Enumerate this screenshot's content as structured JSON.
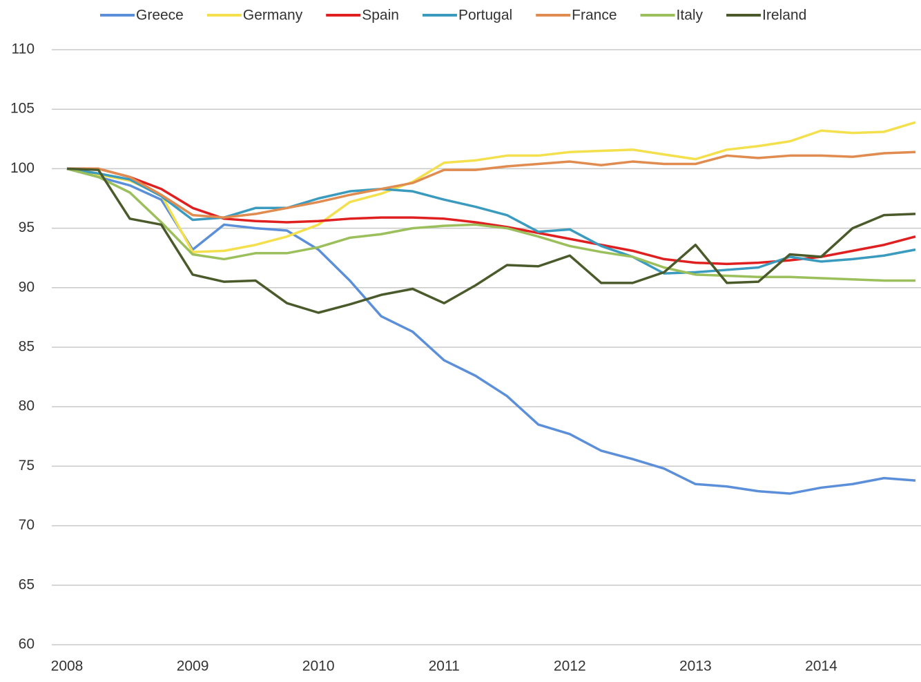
{
  "chart_data": {
    "type": "line",
    "x": [
      2008,
      2008.25,
      2008.5,
      2008.75,
      2009,
      2009.25,
      2009.5,
      2009.75,
      2010,
      2010.25,
      2010.5,
      2010.75,
      2011,
      2011.25,
      2011.5,
      2011.75,
      2012,
      2012.25,
      2012.5,
      2012.75,
      2013,
      2013.25,
      2013.5,
      2013.75,
      2014,
      2014.25,
      2014.5,
      2014.75
    ],
    "xlim": [
      2008,
      2014.75
    ],
    "xticks": [
      2008,
      2009,
      2010,
      2011,
      2012,
      2013,
      2014
    ],
    "ylim": [
      60,
      110
    ],
    "yticks": [
      60,
      65,
      70,
      75,
      80,
      85,
      90,
      95,
      100,
      105,
      110
    ],
    "grid": true,
    "series": [
      {
        "name": "Greece",
        "color": "#5b8fd9",
        "values": [
          100,
          99.3,
          98.6,
          97.4,
          93.2,
          95.3,
          95.0,
          94.8,
          93.2,
          90.6,
          87.6,
          86.3,
          83.9,
          82.6,
          80.9,
          78.5,
          77.7,
          76.3,
          75.6,
          74.8,
          73.5,
          73.3,
          72.9,
          72.7,
          73.2,
          73.5,
          74.0,
          73.8
        ]
      },
      {
        "name": "Germany",
        "color": "#f4e04d",
        "values": [
          100,
          99.5,
          99.0,
          97.8,
          93.0,
          93.1,
          93.6,
          94.3,
          95.3,
          97.2,
          97.9,
          98.9,
          100.5,
          100.7,
          101.1,
          101.1,
          101.4,
          101.5,
          101.6,
          101.2,
          100.8,
          101.6,
          101.9,
          102.3,
          103.2,
          103.0,
          103.1,
          103.9
        ]
      },
      {
        "name": "Spain",
        "color": "#e02020",
        "values": [
          100,
          100,
          99.3,
          98.3,
          96.7,
          95.8,
          95.6,
          95.5,
          95.6,
          95.8,
          95.9,
          95.9,
          95.8,
          95.5,
          95.1,
          94.6,
          94.1,
          93.6,
          93.1,
          92.4,
          92.1,
          92.0,
          92.1,
          92.3,
          92.6,
          93.1,
          93.6,
          94.3
        ]
      },
      {
        "name": "Portugal",
        "color": "#3a9bbf",
        "values": [
          100,
          99.6,
          99.1,
          97.7,
          95.7,
          95.9,
          96.7,
          96.7,
          97.5,
          98.1,
          98.3,
          98.1,
          97.4,
          96.8,
          96.1,
          94.7,
          94.9,
          93.5,
          92.6,
          91.2,
          91.3,
          91.5,
          91.7,
          92.6,
          92.2,
          92.4,
          92.7,
          93.2
        ]
      },
      {
        "name": "France",
        "color": "#e08b4f",
        "values": [
          100,
          100,
          99.3,
          97.8,
          96.1,
          95.9,
          96.2,
          96.7,
          97.2,
          97.8,
          98.3,
          98.8,
          99.9,
          99.9,
          100.2,
          100.4,
          100.6,
          100.3,
          100.6,
          100.4,
          100.4,
          101.1,
          100.9,
          101.1,
          101.1,
          101.0,
          101.3,
          101.4
        ]
      },
      {
        "name": "Italy",
        "color": "#9bbf5a",
        "values": [
          100,
          99.3,
          98.0,
          95.5,
          92.8,
          92.4,
          92.9,
          92.9,
          93.4,
          94.2,
          94.5,
          95.0,
          95.2,
          95.3,
          95.0,
          94.3,
          93.5,
          93.0,
          92.6,
          91.7,
          91.1,
          91.0,
          90.9,
          90.9,
          90.8,
          90.7,
          90.6,
          90.6
        ]
      },
      {
        "name": "Ireland",
        "color": "#4a5a2a",
        "values": [
          100,
          99.9,
          95.8,
          95.3,
          91.1,
          90.5,
          90.6,
          88.7,
          87.9,
          88.6,
          89.4,
          89.9,
          88.7,
          90.2,
          91.9,
          91.8,
          92.7,
          90.4,
          90.4,
          91.3,
          93.6,
          90.4,
          90.5,
          92.8,
          92.6,
          95.0,
          96.1,
          96.2
        ]
      }
    ]
  }
}
